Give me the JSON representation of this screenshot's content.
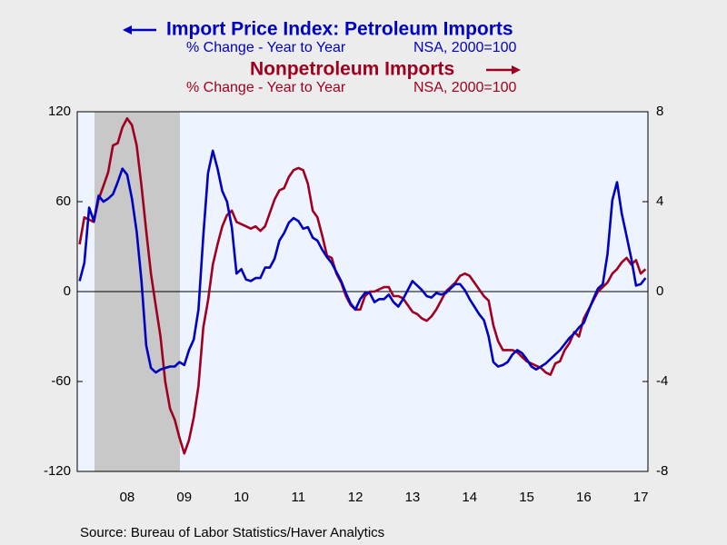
{
  "chart_data": {
    "type": "line",
    "titles": [
      {
        "text": "Import Price Index: Petroleum Imports",
        "sub_left": "% Change - Year to Year",
        "sub_right": "NSA, 2000=100"
      },
      {
        "text": "Nonpetroleum Imports",
        "sub_left": "% Change - Year to Year",
        "sub_right": "NSA, 2000=100"
      }
    ],
    "source": "Source:  Bureau of Labor Statistics/Haver Analytics",
    "categories": [
      null,
      null,
      null,
      null,
      null,
      null,
      null,
      null,
      null,
      null,
      "08",
      null,
      null,
      null,
      null,
      null,
      null,
      null,
      null,
      null,
      null,
      null,
      "09",
      null,
      null,
      null,
      null,
      null,
      null,
      null,
      null,
      null,
      null,
      null,
      "10",
      null,
      null,
      null,
      null,
      null,
      null,
      null,
      null,
      null,
      null,
      null,
      "11",
      null,
      null,
      null,
      null,
      null,
      null,
      null,
      null,
      null,
      null,
      null,
      "12",
      null,
      null,
      null,
      null,
      null,
      null,
      null,
      null,
      null,
      null,
      null,
      "13",
      null,
      null,
      null,
      null,
      null,
      null,
      null,
      null,
      null,
      null,
      null,
      "14",
      null,
      null,
      null,
      null,
      null,
      null,
      null,
      null,
      null,
      null,
      null,
      "15",
      null,
      null,
      null,
      null,
      null,
      null,
      null,
      null,
      null,
      null,
      null,
      "16",
      null,
      null,
      null,
      null,
      null,
      null,
      null,
      null,
      null,
      null,
      null,
      "17",
      null
    ],
    "series": [
      {
        "name": "Import Price Index: Petroleum Imports",
        "color": "#0000c0",
        "axis": "y",
        "values": [
          7,
          19,
          56,
          47,
          64,
          60,
          62,
          65,
          73,
          82,
          78,
          62,
          40,
          7,
          -36,
          -51,
          -54,
          -52,
          -51,
          -50,
          -50,
          -47,
          -49,
          -39,
          -32,
          -12,
          37,
          79,
          94,
          82,
          67,
          60,
          43,
          12,
          15,
          8,
          7,
          9,
          9,
          16,
          16,
          22,
          34,
          39,
          46,
          49,
          47,
          42,
          43,
          36,
          34,
          28,
          23,
          19,
          13,
          7,
          -1,
          -8,
          -12,
          -5,
          -1,
          -1,
          -7,
          -5,
          -5,
          -2,
          -7,
          -10,
          -5,
          1,
          7,
          4,
          1,
          -3,
          -4,
          -1,
          -2,
          -1,
          2,
          5,
          5,
          1,
          -5,
          -10,
          -15,
          -19,
          -30,
          -47,
          -50,
          -49,
          -47,
          -42,
          -39,
          -41,
          -45,
          -50,
          -52,
          -50,
          -48,
          -45,
          -42,
          -39,
          -35,
          -31,
          -28,
          -24,
          -21,
          -13,
          -5,
          2,
          5,
          25,
          61,
          73,
          52,
          37,
          22,
          4,
          5,
          9
        ]
      },
      {
        "name": "Nonpetroleum Imports",
        "color": "#a00020",
        "axis": "y2",
        "values": [
          2.1,
          3.3,
          3.2,
          3.1,
          4.1,
          4.7,
          5.3,
          6.5,
          6.6,
          7.3,
          7.7,
          7.4,
          6.5,
          4.7,
          2.7,
          0.8,
          -0.6,
          -2.0,
          -4.0,
          -5.2,
          -5.7,
          -6.5,
          -7.2,
          -6.6,
          -5.6,
          -4.2,
          -1.6,
          -0.4,
          1.2,
          2.1,
          2.9,
          3.4,
          3.6,
          3.1,
          3.0,
          2.9,
          2.8,
          2.9,
          2.7,
          2.9,
          3.5,
          4.1,
          4.5,
          4.6,
          5.1,
          5.4,
          5.5,
          5.4,
          4.8,
          3.6,
          3.3,
          2.5,
          1.6,
          1.5,
          0.8,
          0.4,
          -0.2,
          -0.6,
          -0.8,
          -0.8,
          -0.2,
          0.0,
          0.0,
          0.1,
          0.2,
          0.2,
          -0.2,
          -0.2,
          -0.3,
          -0.6,
          -0.9,
          -1.0,
          -1.2,
          -1.3,
          -1.1,
          -0.8,
          -0.4,
          0.0,
          0.2,
          0.4,
          0.7,
          0.8,
          0.7,
          0.4,
          0.1,
          -0.2,
          -0.4,
          -1.5,
          -2.2,
          -2.6,
          -2.6,
          -2.6,
          -2.7,
          -2.9,
          -3.1,
          -3.2,
          -3.3,
          -3.4,
          -3.6,
          -3.7,
          -3.2,
          -3.1,
          -2.6,
          -2.3,
          -1.8,
          -2.0,
          -1.2,
          -0.8,
          -0.4,
          0.0,
          0.2,
          0.4,
          0.8,
          1.0,
          1.3,
          1.5,
          1.2,
          1.4,
          0.8,
          1.0
        ]
      }
    ],
    "ylim": [
      -120,
      120
    ],
    "yticks": [
      -120,
      -60,
      0,
      60,
      120
    ],
    "y2lim": [
      -8,
      8
    ],
    "y2ticks": [
      -8,
      -4,
      0,
      4,
      8
    ],
    "zero_line": true
  }
}
